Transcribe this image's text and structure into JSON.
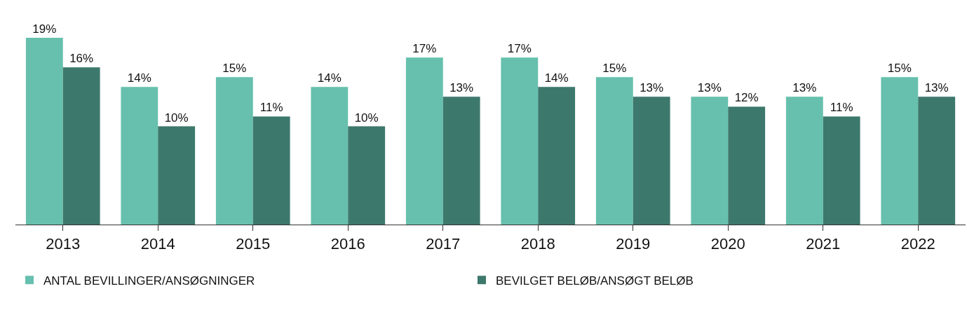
{
  "chart_data": {
    "type": "bar",
    "categories": [
      "2013",
      "2014",
      "2015",
      "2016",
      "2017",
      "2018",
      "2019",
      "2020",
      "2021",
      "2022"
    ],
    "series": [
      {
        "name": "ANTAL BEVILLINGER/ANSØGNINGER",
        "color": "#66c0ad",
        "values": [
          19,
          14,
          15,
          14,
          17,
          17,
          15,
          13,
          13,
          15
        ],
        "value_labels": [
          "19%",
          "14%",
          "15%",
          "14%",
          "17%",
          "17%",
          "15%",
          "13%",
          "13%",
          "15%"
        ]
      },
      {
        "name": "BEVILGET BELØB/ANSØGT BELØB",
        "color": "#3d786c",
        "values": [
          16,
          10,
          11,
          10,
          13,
          14,
          13,
          12,
          11,
          13
        ],
        "value_labels": [
          "16%",
          "10%",
          "11%",
          "10%",
          "13%",
          "14%",
          "13%",
          "12%",
          "11%",
          "13%"
        ]
      }
    ],
    "legend": "bottom left"
  }
}
